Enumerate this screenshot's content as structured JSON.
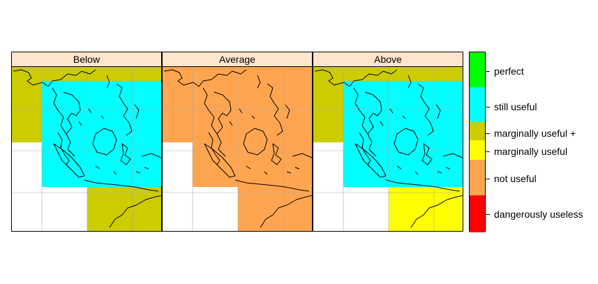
{
  "panels": [
    {
      "title": "Below",
      "regions": {
        "top_left": "marginally useful +",
        "main": "still useful",
        "bottom_right": "marginally useful +"
      }
    },
    {
      "title": "Average",
      "regions": {
        "top_left": "not useful",
        "main": "not useful",
        "bottom_right": "not useful"
      }
    },
    {
      "title": "Above",
      "regions": {
        "top_left": "marginally useful +",
        "main": "still useful",
        "bottom_right": "marginally useful"
      }
    }
  ],
  "legend": {
    "categories": [
      {
        "label": "perfect",
        "color": "#00ff00"
      },
      {
        "label": "still useful",
        "color": "#00ffff"
      },
      {
        "label": "marginally useful +",
        "color": "#cccc00"
      },
      {
        "label": "marginally useful",
        "color": "#ffff00"
      },
      {
        "label": "not useful",
        "color": "#ffa550"
      },
      {
        "label": "dangerously useless",
        "color": "#ff0000"
      }
    ]
  },
  "colors": {
    "strip": "#ffe5cc",
    "grid": "#aaaaaa",
    "coast": "#000000"
  }
}
